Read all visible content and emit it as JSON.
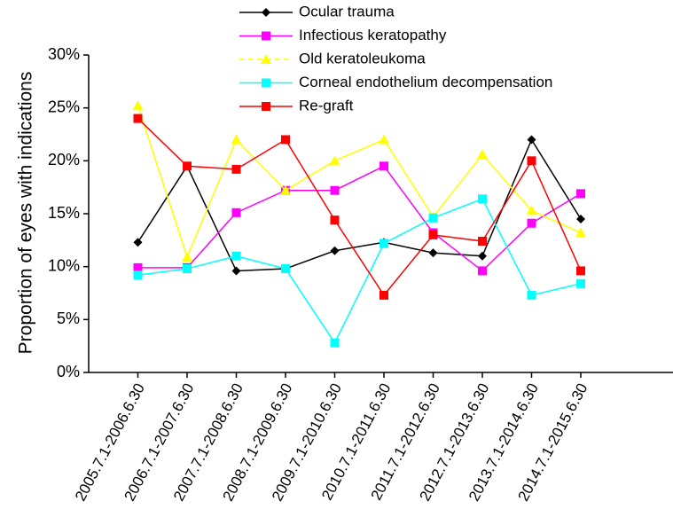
{
  "chart_data": {
    "type": "line",
    "y_label": "Proportion of eyes with indications",
    "categories": [
      "2005.7.1-2006.6.30",
      "2006.7.1-2007.6.30",
      "2007.7.1-2008.6.30",
      "2008.7.1-2009.6.30",
      "2009.7.1-2010.6.30",
      "2010.7.1-2011.6.30",
      "2011.7.1-2012.6.30",
      "2012.7.1-2013.6.30",
      "2013.7.1-2014.6.30",
      "2014.7.1-2015.6.30"
    ],
    "series": [
      {
        "name": "Ocular trauma",
        "color": "#000000",
        "marker": "diamond",
        "values": [
          12.3,
          19.5,
          9.6,
          9.8,
          11.5,
          12.3,
          11.3,
          11.0,
          22.0,
          14.5
        ]
      },
      {
        "name": "Infectious keratopathy",
        "color": "#ff00ff",
        "marker": "square",
        "values": [
          9.9,
          9.9,
          15.1,
          17.2,
          17.2,
          19.5,
          13.2,
          9.6,
          14.1,
          16.9
        ]
      },
      {
        "name": "Old keratoleukoma",
        "color": "#ffff00",
        "marker": "triangle",
        "values": [
          25.2,
          10.9,
          22.0,
          17.2,
          20.0,
          22.0,
          14.7,
          20.6,
          15.3,
          13.2
        ]
      },
      {
        "name": "Corneal endothelium decompensation",
        "color": "#00ffff",
        "marker": "square",
        "values": [
          9.2,
          9.8,
          11.0,
          9.8,
          2.8,
          12.2,
          14.6,
          16.4,
          7.3,
          8.4
        ]
      },
      {
        "name": "Re-graft",
        "color": "#ff0000",
        "marker": "square",
        "values": [
          24.0,
          19.5,
          19.2,
          22.0,
          14.4,
          7.3,
          13.0,
          12.4,
          20.0,
          9.6
        ]
      }
    ],
    "ylim": [
      0,
      30
    ],
    "yticks": [
      {
        "value": 0,
        "label": "0%"
      },
      {
        "value": 5,
        "label": "5%"
      },
      {
        "value": 10,
        "label": "10%"
      },
      {
        "value": 15,
        "label": "15%"
      },
      {
        "value": 20,
        "label": "20%"
      },
      {
        "value": 25,
        "label": "25%"
      },
      {
        "value": 30,
        "label": "30%"
      }
    ]
  }
}
